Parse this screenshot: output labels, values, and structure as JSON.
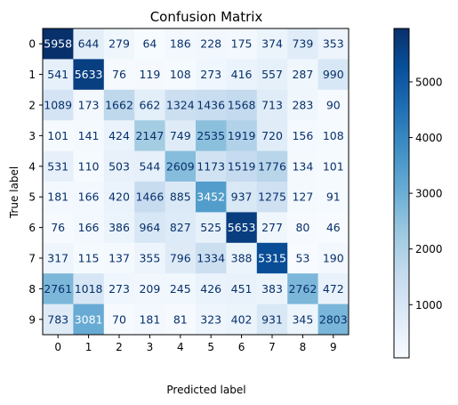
{
  "chart_data": {
    "type": "heatmap",
    "title": "Confusion Matrix",
    "xlabel": "Predicted label",
    "ylabel": "True label",
    "x_categories": [
      "0",
      "1",
      "2",
      "3",
      "4",
      "5",
      "6",
      "7",
      "8",
      "9"
    ],
    "y_categories": [
      "0",
      "1",
      "2",
      "3",
      "4",
      "5",
      "6",
      "7",
      "8",
      "9"
    ],
    "values": [
      [
        5958,
        644,
        279,
        64,
        186,
        228,
        175,
        374,
        739,
        353
      ],
      [
        541,
        5633,
        76,
        119,
        108,
        273,
        416,
        557,
        287,
        990
      ],
      [
        1089,
        173,
        1662,
        662,
        1324,
        1436,
        1568,
        713,
        283,
        90
      ],
      [
        101,
        141,
        424,
        2147,
        749,
        2535,
        1919,
        720,
        156,
        108
      ],
      [
        531,
        110,
        503,
        544,
        2609,
        1173,
        1519,
        1776,
        134,
        101
      ],
      [
        181,
        166,
        420,
        1466,
        885,
        3452,
        937,
        1275,
        127,
        91
      ],
      [
        76,
        166,
        386,
        964,
        827,
        525,
        5653,
        277,
        80,
        46
      ],
      [
        317,
        115,
        137,
        355,
        796,
        1334,
        388,
        5315,
        53,
        190
      ],
      [
        2761,
        1018,
        273,
        209,
        245,
        426,
        451,
        383,
        2762,
        472
      ],
      [
        783,
        3081,
        70,
        181,
        81,
        323,
        402,
        931,
        345,
        2803
      ]
    ],
    "colormap": "Blues",
    "colorbar": {
      "ticks": [
        1000,
        2000,
        3000,
        4000,
        5000
      ],
      "tick_labels": [
        "1000",
        "2000",
        "3000",
        "4000",
        "5000"
      ],
      "min": 46,
      "max": 5958
    },
    "grid": false
  }
}
